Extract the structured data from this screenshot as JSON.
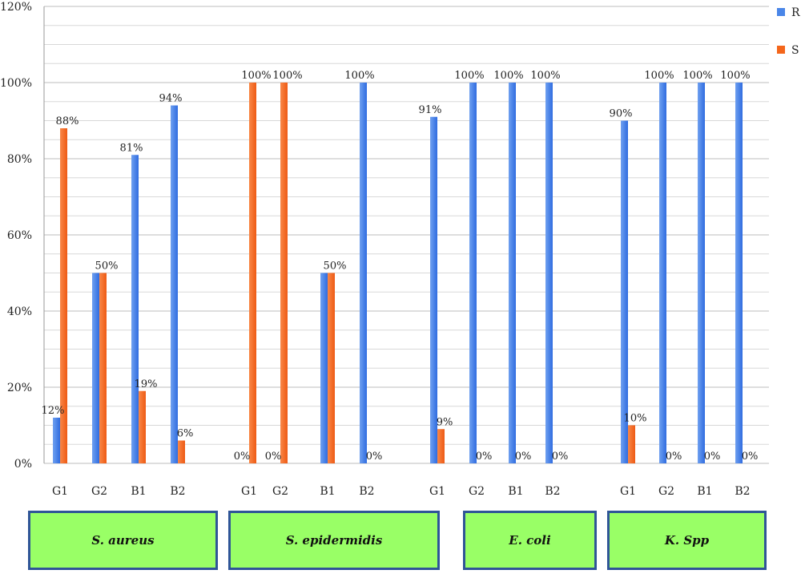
{
  "chart_data": {
    "type": "bar",
    "title": "",
    "xlabel": "",
    "ylabel": "",
    "ylim": [
      0,
      120
    ],
    "yticks": [
      "0%",
      "20%",
      "40%",
      "60%",
      "80%",
      "100%",
      "120%"
    ],
    "grid": true,
    "legend_position": "top-right",
    "series": [
      {
        "name": "R",
        "color": "#4a86e8"
      },
      {
        "name": "S",
        "color": "#f4661b"
      }
    ],
    "groups": [
      {
        "name": "S. aureus",
        "categories": [
          "G1",
          "G2",
          "B1",
          "B2"
        ],
        "R": [
          12,
          50,
          81,
          94
        ],
        "S": [
          88,
          50,
          19,
          6
        ],
        "labels": [
          {
            "text": "12%",
            "series": "R"
          },
          {
            "text": "88%",
            "series": "S"
          },
          {
            "text": "50%",
            "series": "S"
          },
          {
            "text": "81%",
            "series": "R"
          },
          {
            "text": "19%",
            "series": "S"
          },
          {
            "text": "94%",
            "series": "R"
          },
          {
            "text": "6%",
            "series": "S"
          }
        ]
      },
      {
        "name": "S. epidermidis",
        "categories": [
          "G1",
          "G2",
          "B1",
          "B2"
        ],
        "R": [
          0,
          0,
          50,
          100
        ],
        "S": [
          100,
          100,
          50,
          0
        ],
        "labels": [
          {
            "text": "0%",
            "series": "R"
          },
          {
            "text": "100%",
            "series": "S"
          },
          {
            "text": "0%",
            "series": "R"
          },
          {
            "text": "100%",
            "series": "S"
          },
          {
            "text": "50%",
            "series": "S"
          },
          {
            "text": "100%",
            "series": "R"
          },
          {
            "text": "0%",
            "series": "S"
          }
        ]
      },
      {
        "name": "E. coli",
        "categories": [
          "G1",
          "G2",
          "B1",
          "B2"
        ],
        "R": [
          91,
          100,
          100,
          100
        ],
        "S": [
          9,
          0,
          0,
          0
        ],
        "labels": [
          {
            "text": "91%",
            "series": "R"
          },
          {
            "text": "9%",
            "series": "S"
          },
          {
            "text": "100%",
            "series": "R"
          },
          {
            "text": "0%",
            "series": "S"
          },
          {
            "text": "100%",
            "series": "R"
          },
          {
            "text": "0%",
            "series": "S"
          },
          {
            "text": "100%",
            "series": "R"
          },
          {
            "text": "0%",
            "series": "S"
          }
        ]
      },
      {
        "name": "K. Spp",
        "categories": [
          "G1",
          "G2",
          "B1",
          "B2"
        ],
        "R": [
          90,
          100,
          100,
          100
        ],
        "S": [
          10,
          0,
          0,
          0
        ],
        "labels": [
          {
            "text": "90%",
            "series": "R"
          },
          {
            "text": "10%",
            "series": "S"
          },
          {
            "text": "100%",
            "series": "R"
          },
          {
            "text": "0%",
            "series": "S"
          },
          {
            "text": "100%",
            "series": "R"
          },
          {
            "text": "0%",
            "series": "S"
          },
          {
            "text": "100%",
            "series": "R"
          },
          {
            "text": "0%",
            "series": "S"
          }
        ]
      }
    ]
  }
}
